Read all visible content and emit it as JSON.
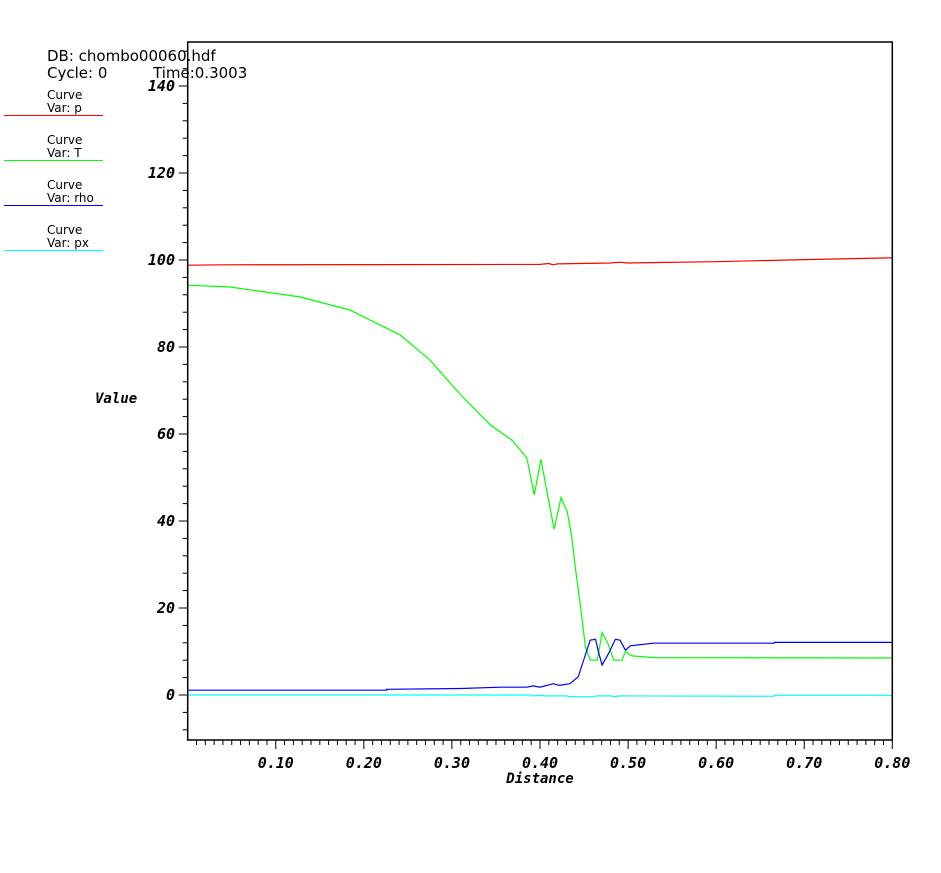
{
  "header": {
    "db": "DB: chombo00060.hdf",
    "cycle": "Cycle: 0",
    "time": "Time:0.3003"
  },
  "legend": [
    {
      "title": "Curve",
      "var": "Var: p",
      "color": "#ff0000"
    },
    {
      "title": "Curve",
      "var": "Var: T",
      "color": "#00ff00"
    },
    {
      "title": "Curve",
      "var": "Var: rho",
      "color": "#0000ff"
    },
    {
      "title": "Curve",
      "var": "Var: px",
      "color": "#00ffff"
    }
  ],
  "chart_data": {
    "type": "line",
    "xlabel": "Distance",
    "ylabel": "Value",
    "xlim": [
      0,
      0.8
    ],
    "ylim": [
      -10.4,
      150
    ],
    "xticks": [
      "0.10",
      "0.20",
      "0.30",
      "0.40",
      "0.50",
      "0.60",
      "0.70",
      "0.80"
    ],
    "yticks": [
      "0",
      "20",
      "40",
      "60",
      "80",
      "100",
      "120",
      "140"
    ],
    "grid": false,
    "legend_position": "left",
    "series": [
      {
        "name": "p",
        "color": "#ff0000",
        "points": [
          [
            0,
            98.8
          ],
          [
            0.04,
            98.9
          ],
          [
            0.4,
            99.0
          ],
          [
            0.41,
            99.2
          ],
          [
            0.415,
            98.9
          ],
          [
            0.42,
            99.1
          ],
          [
            0.48,
            99.3
          ],
          [
            0.49,
            99.5
          ],
          [
            0.5,
            99.3
          ],
          [
            0.6,
            99.6
          ],
          [
            0.7,
            100.1
          ],
          [
            0.8,
            100.5
          ]
        ]
      },
      {
        "name": "T",
        "color": "#00ff00",
        "points": [
          [
            0,
            94.2
          ],
          [
            0.048,
            93.8
          ],
          [
            0.128,
            91.5
          ],
          [
            0.184,
            88.5
          ],
          [
            0.241,
            82.8
          ],
          [
            0.275,
            77
          ],
          [
            0.31,
            69
          ],
          [
            0.344,
            62
          ],
          [
            0.368,
            58.6
          ],
          [
            0.385,
            54.5
          ],
          [
            0.3935,
            46
          ],
          [
            0.401,
            54.2
          ],
          [
            0.416,
            38.1
          ],
          [
            0.424,
            45.4
          ],
          [
            0.431,
            42.1
          ],
          [
            0.436,
            36.4
          ],
          [
            0.44,
            29.5
          ],
          [
            0.446,
            20.3
          ],
          [
            0.4515,
            11.1
          ],
          [
            0.457,
            8
          ],
          [
            0.465,
            8
          ],
          [
            0.4705,
            14.4
          ],
          [
            0.477,
            11.9
          ],
          [
            0.4837,
            8
          ],
          [
            0.493,
            8
          ],
          [
            0.497,
            10
          ],
          [
            0.5045,
            9
          ],
          [
            0.529,
            8.6
          ],
          [
            0.8,
            8.5
          ]
        ]
      },
      {
        "name": "rho",
        "color": "#0000ff",
        "points": [
          [
            0,
            1.1
          ],
          [
            0.226,
            1.1
          ],
          [
            0.226,
            1.3
          ],
          [
            0.31,
            1.5
          ],
          [
            0.355,
            1.8
          ],
          [
            0.385,
            1.8
          ],
          [
            0.392,
            2.1
          ],
          [
            0.4,
            1.8
          ],
          [
            0.415,
            2.6
          ],
          [
            0.422,
            2.2
          ],
          [
            0.434,
            2.6
          ],
          [
            0.4435,
            4.2
          ],
          [
            0.449,
            7.7
          ],
          [
            0.457,
            12.6
          ],
          [
            0.463,
            12.8
          ],
          [
            0.4666,
            9.7
          ],
          [
            0.4705,
            6.9
          ],
          [
            0.478,
            9.6
          ],
          [
            0.4856,
            12.8
          ],
          [
            0.491,
            12.6
          ],
          [
            0.497,
            10.3
          ],
          [
            0.5026,
            11.3
          ],
          [
            0.529,
            11.9
          ],
          [
            0.666,
            11.9
          ],
          [
            0.666,
            12.1
          ],
          [
            0.8,
            12.1
          ]
        ]
      },
      {
        "name": "px",
        "color": "#00ffff",
        "points": [
          [
            0,
            0
          ],
          [
            0.39,
            0
          ],
          [
            0.392,
            -0.2
          ],
          [
            0.4,
            -0.1
          ],
          [
            0.405,
            -0.2
          ],
          [
            0.43,
            -0.2
          ],
          [
            0.435,
            -0.4
          ],
          [
            0.46,
            -0.4
          ],
          [
            0.465,
            -0.2
          ],
          [
            0.48,
            -0.2
          ],
          [
            0.485,
            -0.4
          ],
          [
            0.49,
            -0.2
          ],
          [
            0.666,
            -0.3
          ],
          [
            0.666,
            -0.07
          ],
          [
            0.8,
            -0.07
          ]
        ]
      }
    ]
  }
}
